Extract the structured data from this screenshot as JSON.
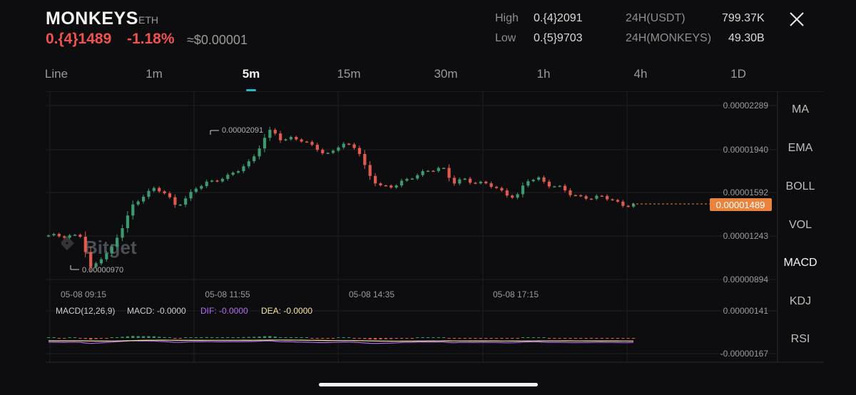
{
  "header": {
    "symbol": "MONKEYS",
    "chain": "ETH",
    "price": "0.{4}1489",
    "change": "-1.18%",
    "usd": "≈$0.00001",
    "high_label": "High",
    "high_value": "0.{4}2091",
    "low_label": "Low",
    "low_value": "0.{5}9703",
    "vol_usdt_label": "24H(USDT)",
    "vol_usdt_value": "799.37K",
    "vol_token_label": "24H(MONKEYS)",
    "vol_token_value": "49.30B"
  },
  "tabs": [
    "Line",
    "1m",
    "5m",
    "15m",
    "30m",
    "1h",
    "4h",
    "1D"
  ],
  "active_tab": "5m",
  "indicators": [
    "MA",
    "EMA",
    "BOLL",
    "VOL",
    "MACD",
    "KDJ",
    "RSI"
  ],
  "active_indicator": "MACD",
  "chart": {
    "y_ticks": [
      "0.00002289",
      "0.00001940",
      "0.00001592",
      "0.00001243",
      "0.00000894"
    ],
    "current_price_tag": "0.00001489",
    "high_annotation": "0.00002091",
    "low_annotation": "0.00000970",
    "x_ticks": [
      "05-08 09:15",
      "05-08 11:55",
      "05-08 14:35",
      "05-08 17:15"
    ],
    "watermark": "Bitget",
    "macd_legend": {
      "params": "MACD(12,26,9)",
      "macd": "MACD: -0.0000",
      "dif": "DIF: -0.0000",
      "dea": "DEA: -0.0000"
    },
    "macd_ticks": [
      "0.00000141",
      "-0.00000167"
    ]
  },
  "colors": {
    "up": "#3d9970",
    "down": "#e05a4f",
    "price_tag": "#e8843b",
    "dif_line": "#b36cf2",
    "dea_line": "#f5e6a0",
    "accent": "#2bb3c8"
  },
  "chart_data": {
    "type": "candlestick",
    "interval": "5m",
    "x_range": [
      "05-08 08:55",
      "05-08 18:10"
    ],
    "ylim": [
      8.94e-06,
      2.289e-05
    ],
    "close_path": [
      1.24e-05,
      1.245e-05,
      1.25e-05,
      1.24e-05,
      9.7e-06,
      1.08e-05,
      1.15e-05,
      1.32e-05,
      1.5e-05,
      1.58e-05,
      1.62e-05,
      1.58e-05,
      1.49e-05,
      1.55e-05,
      1.63e-05,
      1.68e-05,
      1.7e-05,
      1.72e-05,
      1.78e-05,
      1.85e-05,
      1.98e-05,
      2.1e-05,
      2e-05,
      2.05e-05,
      1.98e-05,
      1.97e-05,
      1.89e-05,
      1.95e-05,
      1.97e-05,
      1.96e-05,
      1.75e-05,
      1.64e-05,
      1.63e-05,
      1.68e-05,
      1.7e-05,
      1.74e-05,
      1.78e-05,
      1.8e-05,
      1.66e-05,
      1.7e-05,
      1.68e-05,
      1.66e-05,
      1.63e-05,
      1.58e-05,
      1.56e-05,
      1.68e-05,
      1.71e-05,
      1.66e-05,
      1.63e-05,
      1.58e-05,
      1.56e-05,
      1.55e-05,
      1.55e-05,
      1.54e-05,
      1.49e-05,
      1.49e-05
    ],
    "macd_hist_range": [
      -1.67e-06,
      1.41e-06
    ]
  }
}
